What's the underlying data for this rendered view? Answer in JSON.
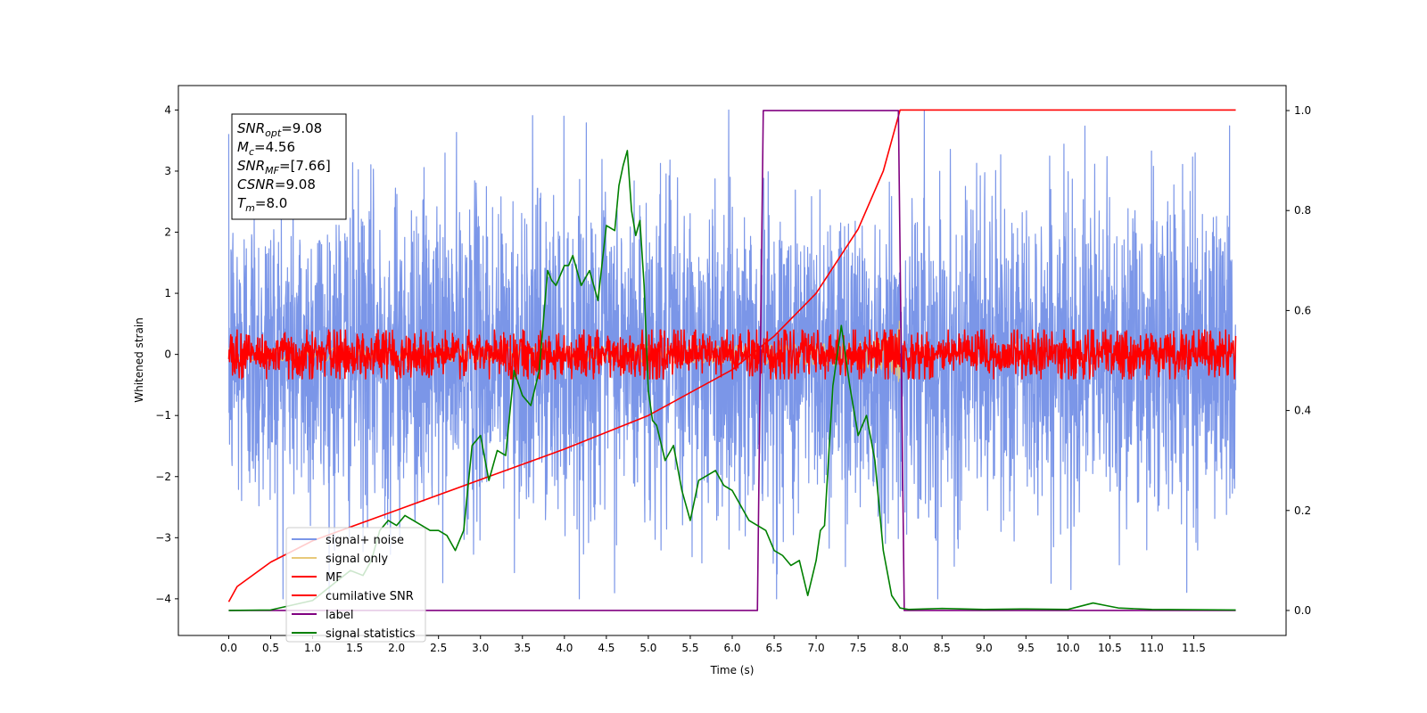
{
  "chart_data": {
    "type": "line",
    "xlabel": "Time (s)",
    "ylabel": "Whitened strain",
    "xlim": [
      -0.6,
      12.6
    ],
    "ylim": [
      -4.6,
      4.4
    ],
    "ylim_right": [
      -0.05,
      1.05
    ],
    "x_ticks": [
      "0.0",
      "0.5",
      "1.0",
      "1.5",
      "2.0",
      "2.5",
      "3.0",
      "3.5",
      "4.0",
      "4.5",
      "5.0",
      "5.5",
      "6.0",
      "6.5",
      "7.0",
      "7.5",
      "8.0",
      "8.5",
      "9.0",
      "9.5",
      "10.0",
      "10.5",
      "11.0",
      "11.5"
    ],
    "y_ticks_left": [
      "−4",
      "−3",
      "−2",
      "−1",
      "0",
      "1",
      "2",
      "3",
      "4"
    ],
    "y_ticks_right": [
      "0.0",
      "0.2",
      "0.4",
      "0.6",
      "0.8",
      "1.0"
    ],
    "stats_box": [
      {
        "sym": "SNR",
        "sub": "opt",
        "val": "=9.08"
      },
      {
        "sym": "M",
        "sub": "c",
        "val": "=4.56"
      },
      {
        "sym": "SNR",
        "sub": "MF",
        "val": "=[7.66]"
      },
      {
        "sym": "CSNR",
        "sub": "",
        "val": "=9.08"
      },
      {
        "sym": "T",
        "sub": "m",
        "val": "=8.0"
      }
    ],
    "legend_position": "lower left",
    "grid": false,
    "series": [
      {
        "name": "signal+ noise",
        "color": "#7b96e8",
        "axis": "left",
        "kind": "noise",
        "x_range": [
          0,
          12
        ],
        "typical_amplitude": 1.3,
        "peak_amplitude": 4.0
      },
      {
        "name": "signal only",
        "color": "#e8c97a",
        "axis": "left",
        "kind": "chirp",
        "x_range": [
          0,
          8.0
        ],
        "amplitude_at_end": 0.85
      },
      {
        "name": "MF",
        "color": "#ff0000",
        "axis": "left",
        "kind": "noise",
        "x_range": [
          0,
          12
        ],
        "typical_amplitude": 0.2,
        "peak_amplitude": 0.4
      },
      {
        "name": "cumilative SNR",
        "color": "#ff0000",
        "axis": "left",
        "x": [
          0.0,
          0.1,
          0.5,
          1.0,
          2.0,
          3.0,
          4.0,
          5.0,
          6.0,
          6.5,
          7.0,
          7.5,
          7.8,
          7.95,
          8.0,
          12.0
        ],
        "y": [
          -4.05,
          -3.8,
          -3.4,
          -3.05,
          -2.55,
          -2.05,
          -1.55,
          -1.0,
          -0.25,
          0.3,
          1.0,
          2.05,
          3.0,
          3.75,
          4.0,
          4.0
        ]
      },
      {
        "name": "label",
        "color": "#800080",
        "axis": "right",
        "x": [
          0.0,
          6.3,
          6.37,
          7.98,
          8.05,
          12.0
        ],
        "y": [
          0.0,
          0.0,
          1.0,
          1.0,
          0.0,
          0.0
        ]
      },
      {
        "name": "signal statistics",
        "color": "#008000",
        "axis": "right",
        "x": [
          0.0,
          0.5,
          1.0,
          1.3,
          1.45,
          1.6,
          1.7,
          1.8,
          1.9,
          2.0,
          2.1,
          2.2,
          2.3,
          2.4,
          2.5,
          2.6,
          2.7,
          2.8,
          2.9,
          3.0,
          3.1,
          3.2,
          3.3,
          3.4,
          3.5,
          3.6,
          3.7,
          3.8,
          3.85,
          3.9,
          4.0,
          4.05,
          4.1,
          4.2,
          4.3,
          4.4,
          4.5,
          4.6,
          4.65,
          4.7,
          4.75,
          4.8,
          4.85,
          4.9,
          4.95,
          5.0,
          5.05,
          5.1,
          5.2,
          5.3,
          5.4,
          5.5,
          5.6,
          5.7,
          5.8,
          5.9,
          6.0,
          6.1,
          6.2,
          6.3,
          6.4,
          6.5,
          6.6,
          6.7,
          6.8,
          6.9,
          7.0,
          7.05,
          7.1,
          7.2,
          7.3,
          7.4,
          7.5,
          7.6,
          7.7,
          7.8,
          7.9,
          8.0,
          8.1,
          8.5,
          9.0,
          9.5,
          10.0,
          10.3,
          10.45,
          10.6,
          11.0,
          12.0
        ],
        "y": [
          0.0,
          0.001,
          0.02,
          0.06,
          0.08,
          0.07,
          0.1,
          0.16,
          0.18,
          0.17,
          0.19,
          0.18,
          0.17,
          0.16,
          0.16,
          0.15,
          0.12,
          0.16,
          0.33,
          0.35,
          0.26,
          0.32,
          0.31,
          0.48,
          0.43,
          0.41,
          0.48,
          0.68,
          0.66,
          0.65,
          0.69,
          0.69,
          0.71,
          0.65,
          0.68,
          0.62,
          0.77,
          0.76,
          0.85,
          0.89,
          0.92,
          0.8,
          0.75,
          0.78,
          0.65,
          0.44,
          0.38,
          0.37,
          0.3,
          0.33,
          0.24,
          0.18,
          0.26,
          0.27,
          0.28,
          0.25,
          0.24,
          0.21,
          0.18,
          0.17,
          0.16,
          0.12,
          0.11,
          0.09,
          0.1,
          0.03,
          0.1,
          0.16,
          0.17,
          0.45,
          0.57,
          0.45,
          0.35,
          0.39,
          0.3,
          0.12,
          0.03,
          0.005,
          0.002,
          0.004,
          0.002,
          0.003,
          0.002,
          0.015,
          0.01,
          0.005,
          0.002,
          0.001
        ]
      }
    ]
  }
}
